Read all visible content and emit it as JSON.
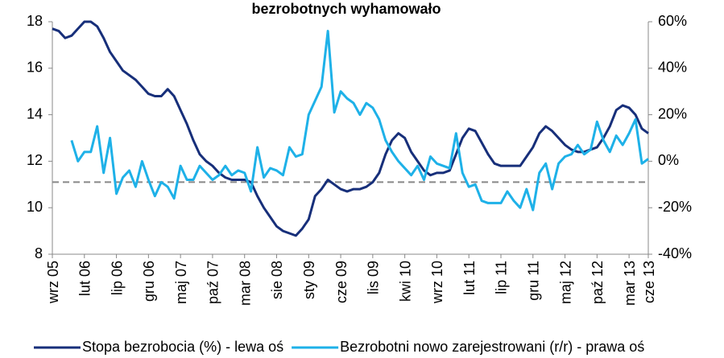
{
  "chart_data": {
    "type": "line",
    "title": "bezrobotnych wyhamowało",
    "categories": [
      "wrz 05",
      null,
      null,
      null,
      null,
      "lut 06",
      null,
      null,
      null,
      null,
      "lip 06",
      null,
      null,
      null,
      null,
      "gru 06",
      null,
      null,
      null,
      null,
      "maj 07",
      null,
      null,
      null,
      null,
      "paź 07",
      null,
      null,
      null,
      null,
      "mar 08",
      null,
      null,
      null,
      null,
      "sie 08",
      null,
      null,
      null,
      null,
      "sty 09",
      null,
      null,
      null,
      null,
      "cze 09",
      null,
      null,
      null,
      null,
      "lis 09",
      null,
      null,
      null,
      null,
      "kwi 10",
      null,
      null,
      null,
      null,
      "wrz 10",
      null,
      null,
      null,
      null,
      "lut 11",
      null,
      null,
      null,
      null,
      "lip 11",
      null,
      null,
      null,
      null,
      "gru 11",
      null,
      null,
      null,
      null,
      "maj 12",
      null,
      null,
      null,
      null,
      "paź 12",
      null,
      null,
      null,
      null,
      "mar 13",
      null,
      null,
      "cze 13"
    ],
    "series": [
      {
        "name": "Stopa bezrobocia (%) - lewa oś",
        "color": "#172f7a",
        "axis": "y",
        "values": [
          17.7,
          17.6,
          17.3,
          17.4,
          17.7,
          18.0,
          18.0,
          17.8,
          17.3,
          16.7,
          16.3,
          15.9,
          15.7,
          15.5,
          15.2,
          14.9,
          14.8,
          14.8,
          15.1,
          14.8,
          14.2,
          13.6,
          12.9,
          12.3,
          12.0,
          11.8,
          11.5,
          11.3,
          11.2,
          11.2,
          11.2,
          11.1,
          10.5,
          10.0,
          9.6,
          9.2,
          9.0,
          8.9,
          8.8,
          9.1,
          9.5,
          10.5,
          10.8,
          11.2,
          11.0,
          10.8,
          10.7,
          10.8,
          10.8,
          10.9,
          11.1,
          11.5,
          12.3,
          12.9,
          13.2,
          13.0,
          12.4,
          12.0,
          11.6,
          11.4,
          11.5,
          11.5,
          11.6,
          12.3,
          13.0,
          13.4,
          13.3,
          12.8,
          12.3,
          11.9,
          11.8,
          11.8,
          11.8,
          11.8,
          12.2,
          12.6,
          13.2,
          13.5,
          13.3,
          13.0,
          12.7,
          12.5,
          12.4,
          12.4,
          12.5,
          12.6,
          13.0,
          13.5,
          14.2,
          14.4,
          14.3,
          14.0,
          13.4,
          13.2
        ]
      },
      {
        "name": "Bezrobotni nowo zarejestrowani (r/r) - prawa oś",
        "color": "#1eb1e8",
        "axis": "y2",
        "values": [
          null,
          null,
          null,
          9,
          0,
          4,
          4,
          15,
          -5,
          10,
          -14,
          -7,
          -4,
          -11,
          0,
          -8,
          -15,
          -9,
          -11,
          -16,
          -2,
          -8,
          -8,
          -2,
          -5,
          -8,
          -6,
          -2,
          -6,
          -4,
          -5,
          -13,
          6,
          -7,
          -3,
          -4,
          -6,
          6,
          2,
          3,
          20,
          26,
          32,
          56,
          21,
          30,
          27,
          25,
          20,
          25,
          23,
          18,
          9,
          4,
          0,
          -3,
          -6,
          -2,
          -8,
          2,
          -1,
          -2,
          -3,
          12,
          -5,
          -11,
          -10,
          -17,
          -18,
          -18,
          -18,
          -13,
          -17,
          -20,
          -12,
          -21,
          -5,
          -1,
          -12,
          -1,
          2,
          3,
          7,
          3,
          5,
          17,
          9,
          4,
          11,
          7,
          12,
          18,
          -1,
          1
        ]
      }
    ],
    "ylim": [
      8,
      18
    ],
    "yticks": [
      8,
      10,
      12,
      14,
      16,
      18
    ],
    "y2lim": [
      -40,
      60
    ],
    "y2ticks": [
      {
        "value": -40,
        "label": "-40%"
      },
      {
        "value": -20,
        "label": "-20%"
      },
      {
        "value": 0,
        "label": "0%"
      },
      {
        "value": 20,
        "label": "20%"
      },
      {
        "value": 40,
        "label": "40%"
      },
      {
        "value": 60,
        "label": "60%"
      }
    ],
    "reference_line": {
      "value": 11.1,
      "axis": "y"
    },
    "legend": "bottom"
  }
}
